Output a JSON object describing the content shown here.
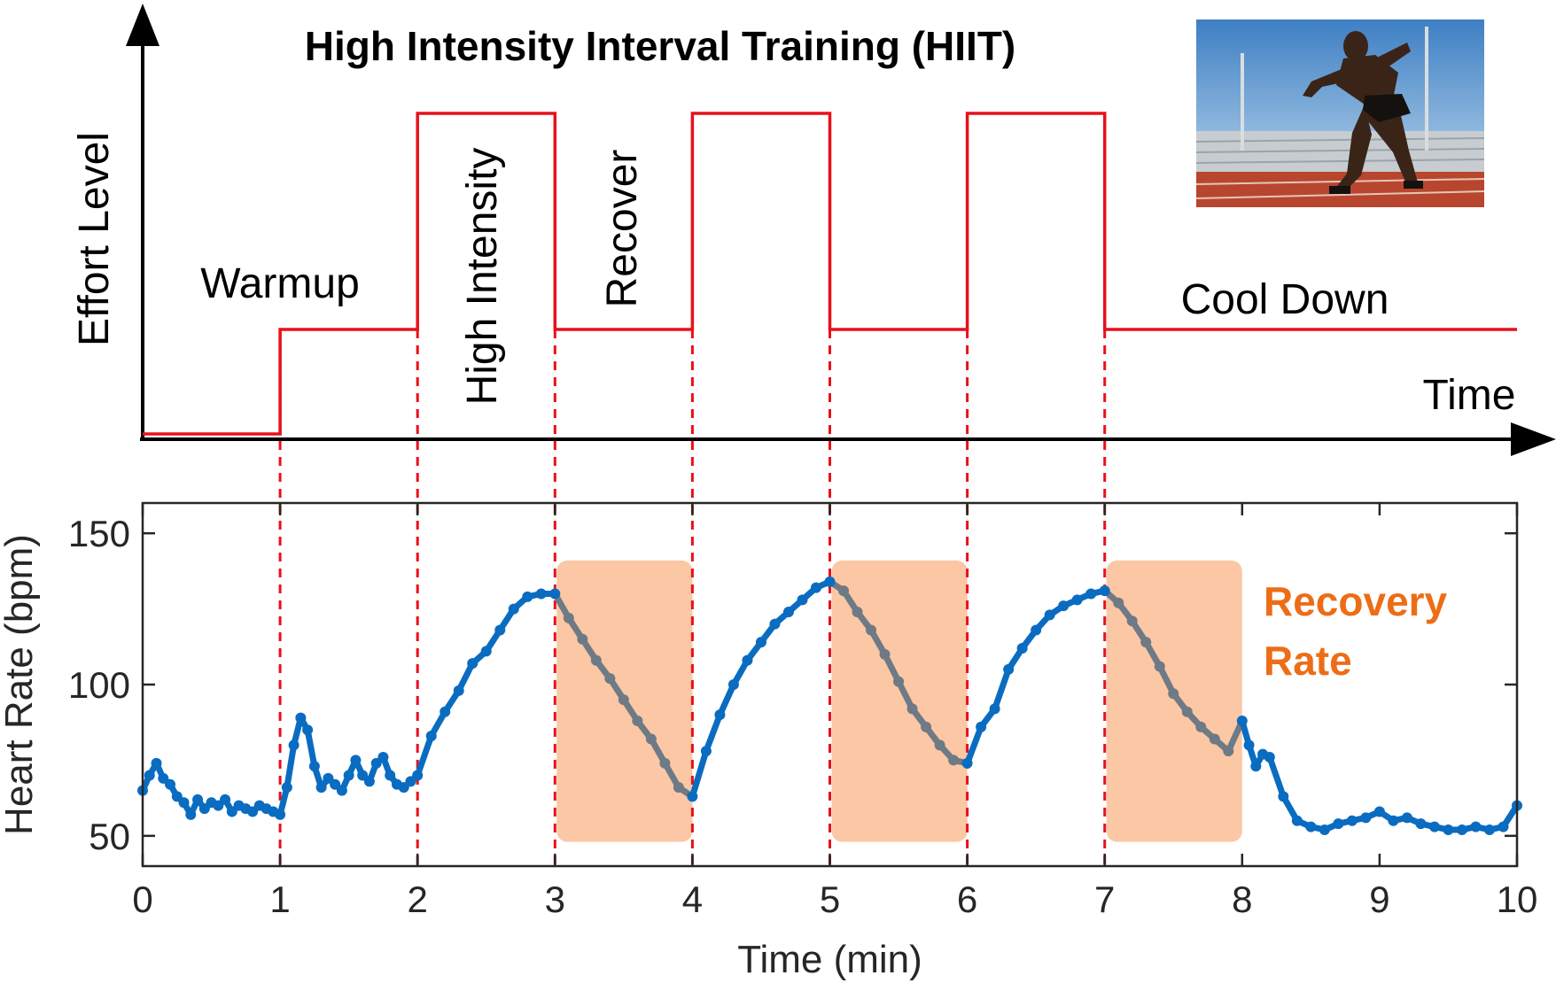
{
  "title": "High Intensity Interval Training (HIIT)",
  "top_panel": {
    "y_axis_label": "Effort Level",
    "x_axis_label": "Time",
    "phase_labels": [
      "Warmup",
      "High Intensity",
      "Recover",
      "Cool Down"
    ],
    "effort_profile": {
      "x": [
        0,
        1,
        1,
        2,
        2,
        3,
        3,
        4,
        4,
        5,
        5,
        6,
        6,
        7,
        7,
        10
      ],
      "level": [
        "rest",
        "rest",
        "moderate",
        "moderate",
        "high",
        "high",
        "moderate",
        "moderate",
        "high",
        "high",
        "moderate",
        "moderate",
        "high",
        "high",
        "moderate",
        "moderate"
      ]
    },
    "photo": "sprinter starting on a running track",
    "line_color": "#e8101a"
  },
  "chart_data": {
    "type": "line",
    "xlabel": "Time (min)",
    "ylabel": "Heart Rate (bpm)",
    "xlim": [
      0,
      10
    ],
    "ylim": [
      40,
      160
    ],
    "xticks": [
      0,
      1,
      2,
      3,
      4,
      5,
      6,
      7,
      8,
      9,
      10
    ],
    "yticks": [
      50,
      100,
      150
    ],
    "grid": false,
    "interval_boundaries": [
      1,
      2,
      3,
      4,
      5,
      6,
      7
    ],
    "recovery_windows": [
      [
        3,
        4
      ],
      [
        5,
        6
      ],
      [
        7,
        8
      ]
    ],
    "annotation": "Recovery Rate",
    "colors": {
      "heart_rate": "#0a6cc0",
      "recovery": "#6e7a85",
      "window": "#fbc7a4",
      "annotation": "#ed6d17",
      "boundary": "#e8101a"
    },
    "series": [
      {
        "x": [
          0.0,
          0.05,
          0.1,
          0.15,
          0.2,
          0.25,
          0.3,
          0.35,
          0.4,
          0.45,
          0.5,
          0.55,
          0.6,
          0.65,
          0.7,
          0.75,
          0.8,
          0.85,
          0.9,
          0.95,
          1.0,
          1.05,
          1.1,
          1.15,
          1.2,
          1.25,
          1.3,
          1.35,
          1.4,
          1.45,
          1.5,
          1.55,
          1.6,
          1.65,
          1.7,
          1.75,
          1.8,
          1.85,
          1.9,
          1.95,
          2.0,
          2.1,
          2.2,
          2.3,
          2.4,
          2.5,
          2.6,
          2.7,
          2.8,
          2.9,
          3.0,
          3.1,
          3.2,
          3.3,
          3.4,
          3.5,
          3.6,
          3.7,
          3.8,
          3.9,
          4.0,
          4.1,
          4.2,
          4.3,
          4.4,
          4.5,
          4.6,
          4.7,
          4.8,
          4.9,
          5.0,
          5.1,
          5.2,
          5.3,
          5.4,
          5.5,
          5.6,
          5.7,
          5.8,
          5.9,
          6.0,
          6.1,
          6.2,
          6.3,
          6.4,
          6.5,
          6.6,
          6.7,
          6.8,
          6.9,
          7.0,
          7.1,
          7.2,
          7.3,
          7.4,
          7.5,
          7.6,
          7.7,
          7.8,
          7.9,
          8.0,
          8.05,
          8.1,
          8.15,
          8.2,
          8.3,
          8.4,
          8.5,
          8.6,
          8.7,
          8.8,
          8.9,
          9.0,
          9.1,
          9.2,
          9.3,
          9.4,
          9.5,
          9.6,
          9.7,
          9.8,
          9.9,
          10.0
        ],
        "values": [
          65,
          70,
          74,
          69,
          67,
          63,
          61,
          57,
          62,
          59,
          61,
          60,
          62,
          58,
          60,
          59,
          58,
          60,
          59,
          58,
          57,
          66,
          80,
          89,
          85,
          73,
          66,
          69,
          67,
          65,
          70,
          75,
          70,
          68,
          74,
          76,
          70,
          67,
          66,
          68,
          70,
          83,
          91,
          98,
          107,
          111,
          118,
          125,
          129,
          130,
          130,
          122,
          115,
          108,
          102,
          95,
          88,
          82,
          74,
          66,
          63,
          78,
          90,
          100,
          108,
          114,
          120,
          124,
          128,
          132,
          134,
          131,
          124,
          118,
          110,
          101,
          92,
          86,
          80,
          75,
          74,
          86,
          92,
          105,
          112,
          118,
          123,
          126,
          128,
          130,
          131,
          127,
          121,
          114,
          106,
          97,
          91,
          86,
          82,
          78,
          88,
          80,
          73,
          77,
          76,
          63,
          55,
          53,
          52,
          54,
          55,
          56,
          58,
          55,
          56,
          54,
          53,
          52,
          52,
          53,
          52,
          53,
          60
        ]
      }
    ]
  }
}
